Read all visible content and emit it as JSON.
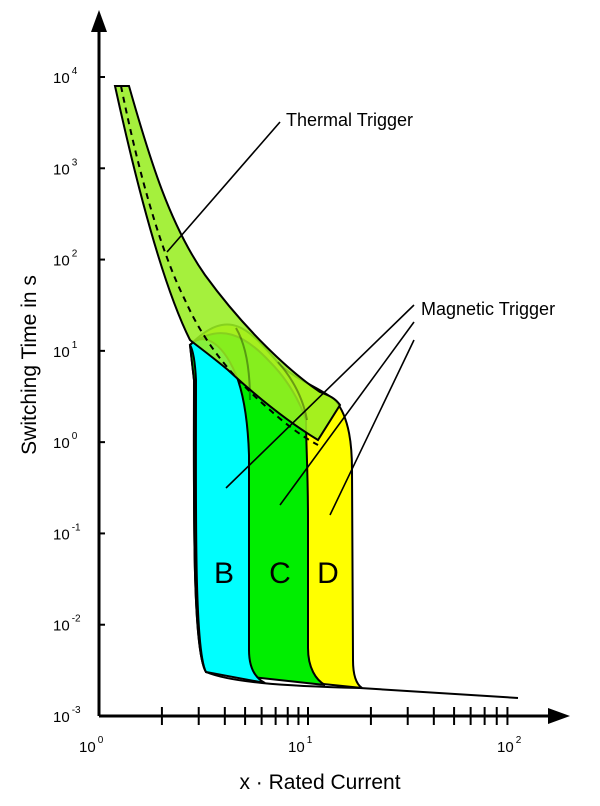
{
  "chart_data": {
    "type": "area",
    "title": "",
    "xlabel": "x · Rated Current",
    "ylabel": "Switching Time in s",
    "x_scale": "log",
    "y_scale": "log",
    "xlim": [
      1,
      100
    ],
    "ylim": [
      0.001,
      10000
    ],
    "x_ticks": [
      {
        "base": "10",
        "exp": "0"
      },
      {
        "base": "10",
        "exp": "1"
      },
      {
        "base": "10",
        "exp": "2"
      }
    ],
    "y_ticks": [
      {
        "base": "10",
        "exp": "4"
      },
      {
        "base": "10",
        "exp": "3"
      },
      {
        "base": "10",
        "exp": "2"
      },
      {
        "base": "10",
        "exp": "1"
      },
      {
        "base": "10",
        "exp": "0"
      },
      {
        "base": "10",
        "exp": "-1"
      },
      {
        "base": "10",
        "exp": "-2"
      },
      {
        "base": "10",
        "exp": "-3"
      }
    ],
    "x_minor_ticks": [
      2,
      3,
      4,
      5,
      6,
      7,
      8,
      9,
      10,
      20,
      30,
      40,
      50,
      60,
      70,
      80,
      90
    ],
    "annotations": [
      {
        "text": "Thermal Trigger"
      },
      {
        "text": "Magnetic Trigger"
      }
    ],
    "zones": [
      {
        "label": "B",
        "magnetic_range": [
          3,
          5
        ],
        "color": "#00ffff"
      },
      {
        "label": "C",
        "magnetic_range": [
          5,
          10
        ],
        "color": "#00ee00"
      },
      {
        "label": "D",
        "magnetic_range": [
          10,
          20
        ],
        "color": "#ffff00"
      }
    ],
    "thermal_band_color": "#99ee22",
    "thermal_band_upper": [
      [
        1.4,
        8000
      ],
      [
        1.6,
        2000
      ],
      [
        2,
        400
      ],
      [
        3,
        60
      ],
      [
        4,
        25
      ],
      [
        5,
        14
      ],
      [
        7,
        7
      ],
      [
        10,
        4.5
      ],
      [
        12,
        3.5
      ]
    ],
    "thermal_band_lower": [
      [
        1.2,
        8000
      ],
      [
        1.5,
        900
      ],
      [
        2,
        120
      ],
      [
        2.5,
        40
      ],
      [
        3,
        15
      ]
    ],
    "thermal_mean_curve": [
      [
        1.3,
        8000
      ],
      [
        1.6,
        700
      ],
      [
        2,
        150
      ],
      [
        3,
        18
      ],
      [
        5,
        4
      ],
      [
        8,
        1.5
      ],
      [
        10,
        0.9
      ]
    ],
    "instantaneous_trip_time": [
      [
        3,
        0.0035
      ],
      [
        20,
        0.0022
      ],
      [
        100,
        0.0017
      ]
    ]
  }
}
